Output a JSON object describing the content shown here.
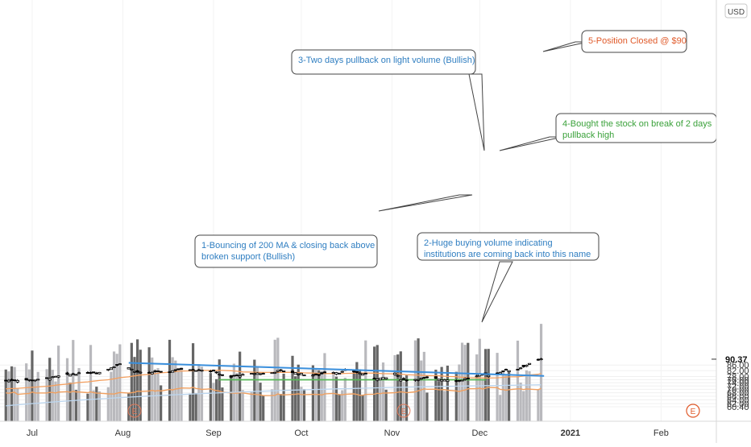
{
  "chart_data": {
    "type": "candlestick",
    "currency": "USD",
    "last_price": "90.37",
    "x_labels": [
      "Jul",
      "Aug",
      "Sep",
      "Oct",
      "Nov",
      "Dec",
      "2021",
      "Feb"
    ],
    "y_ticks": [
      60.4,
      62.0,
      64.0,
      66.0,
      68.0,
      70.0,
      72.0,
      74.0,
      76.0,
      78.0,
      82.0,
      86.0
    ],
    "ylim": [
      59.7,
      93.2
    ],
    "earnings_marker": "E",
    "annotations": [
      {
        "id": 1,
        "text": [
          "1-Bouncing of 200 MA & closing back above",
          "broken support (Bullish)"
        ]
      },
      {
        "id": 2,
        "text": [
          "2-Huge buying volume indicating",
          "institutions are coming back into this name"
        ]
      },
      {
        "id": 3,
        "text": [
          "3-Two days pullback on light volume (Bullish)"
        ]
      },
      {
        "id": 4,
        "text": [
          "4-Bought the stock on break of 2 days",
          "pullback high"
        ]
      },
      {
        "id": 5,
        "text": [
          "5-Position Closed @ $90"
        ]
      }
    ],
    "trendline": {
      "from": {
        "date": "2020-08-03",
        "price": 87.6
      },
      "to": {
        "date": "2020-12-23",
        "price": 78.4
      }
    },
    "support_zone": {
      "from": "2020-09-03",
      "to": "2020-12-03",
      "low": 75.7,
      "high": 76.1
    },
    "series_colors": {
      "bull_candle": "#ffffff",
      "bear_candle": "#000000",
      "wick": "#000000",
      "ma_50": "#f5a05f",
      "ma_200": "#bcd6ef",
      "trendline": "#3a8fdc",
      "support": "#58b858",
      "volume_up": "#b9b9bd",
      "volume_down": "#666666",
      "volume_ma": "#f0a060",
      "note_1": "#2f7ec1",
      "note_2": "#2f7ec1",
      "note_3": "#2f7ec1",
      "note_4": "#3aa13a",
      "note_5": "#e05a2a"
    }
  }
}
